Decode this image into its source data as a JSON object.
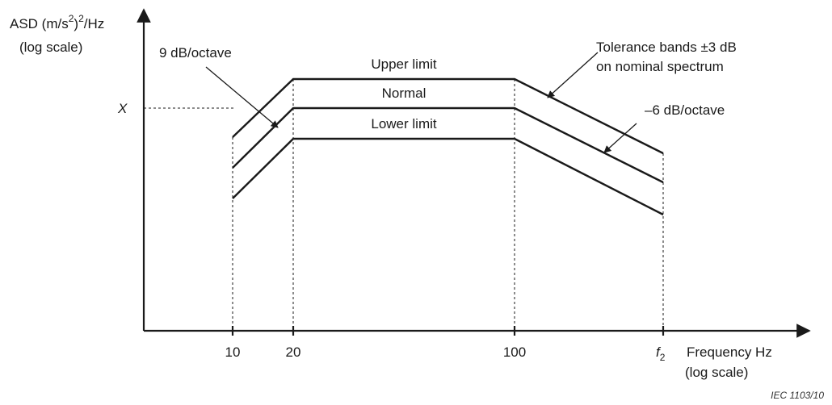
{
  "y_axis": {
    "label": "ASD (m/s",
    "sup1": "2",
    "mid": ")",
    "sup2": "2",
    "tail": "/Hz",
    "scale_note": "(log scale)",
    "level_marker": "X"
  },
  "x_axis": {
    "ticks": [
      "10",
      "20",
      "100"
    ],
    "f2_base": "f",
    "f2_sub": "2",
    "label": "Frequency  Hz",
    "scale_note": "(log scale)"
  },
  "curves": {
    "upper": "Upper limit",
    "normal": "Normal",
    "lower": "Lower limit"
  },
  "annotations": {
    "rise_slope": "9 dB/octave",
    "tolerance_line1": "Tolerance bands ±3 dB",
    "tolerance_line2": "on nominal spectrum",
    "fall_slope": "–6 dB/octave"
  },
  "credit": "IEC   1103/10"
}
